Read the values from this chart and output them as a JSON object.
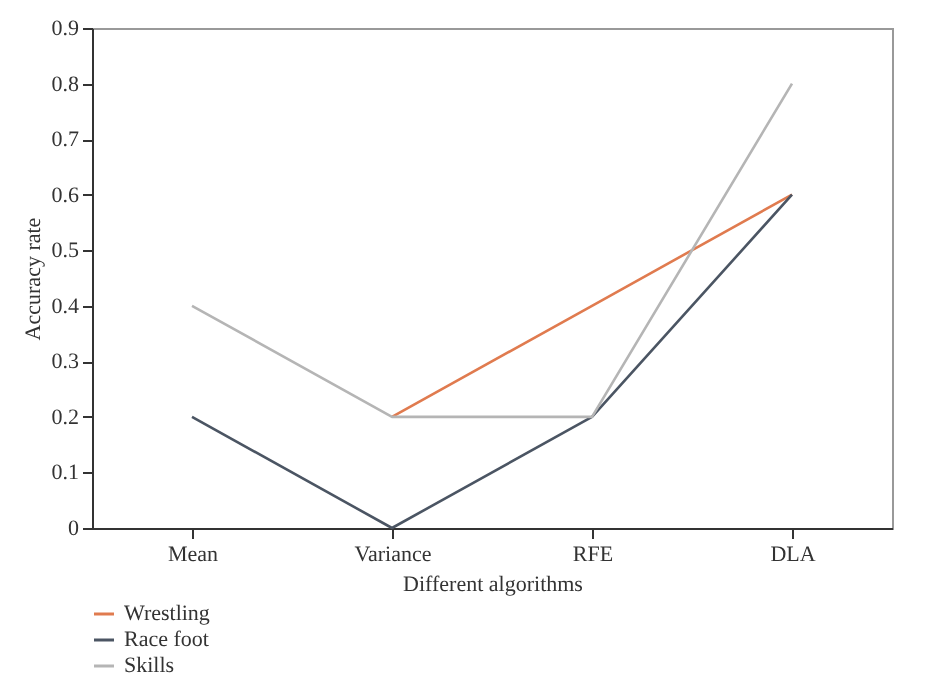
{
  "chart_data": {
    "type": "line",
    "xlabel": "Different algorithms",
    "ylabel": "Accuracy rate",
    "categories": [
      "Mean",
      "Variance",
      "RFE",
      "DLA"
    ],
    "series": [
      {
        "name": "Wrestling",
        "color": "#e07b4f",
        "values": [
          null,
          0.2,
          0.4,
          0.6
        ]
      },
      {
        "name": "Race foot",
        "color": "#4b5563",
        "values": [
          0.2,
          0,
          0.2,
          0.6
        ]
      },
      {
        "name": "Skills",
        "color": "#b5b5b5",
        "values": [
          0.4,
          0.2,
          0.2,
          0.8
        ]
      }
    ],
    "ylim": [
      0,
      0.9
    ],
    "yticks": [
      0,
      0.1,
      0.2,
      0.3,
      0.4,
      0.5,
      0.6,
      0.7,
      0.8,
      0.9
    ],
    "grid": false,
    "legend": "bottom left"
  }
}
